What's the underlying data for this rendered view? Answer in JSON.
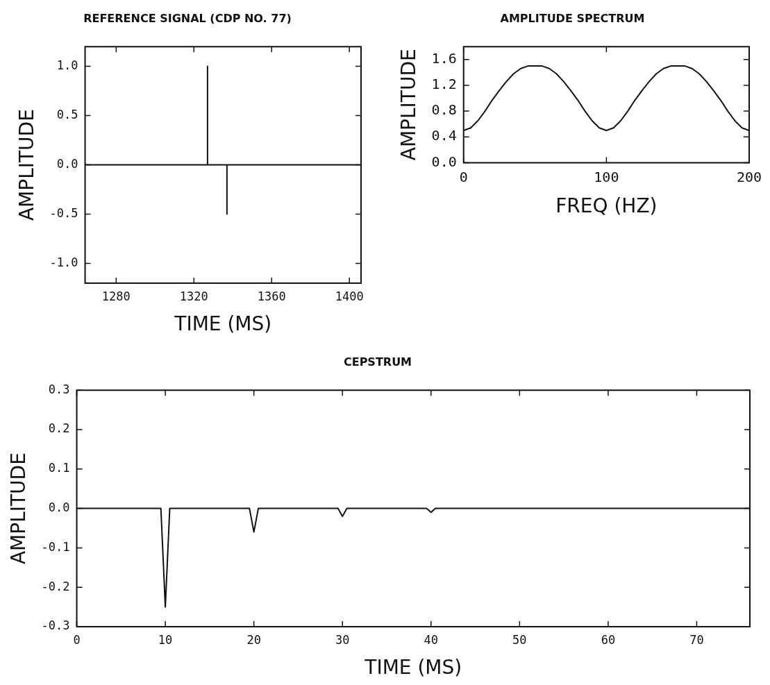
{
  "chart_data": [
    {
      "type": "line",
      "title": "REFERENCE SIGNAL (CDP NO. 77)",
      "xlabel": "TIME (MS)",
      "ylabel": "AMPLITUDE",
      "color": "#111111",
      "marker": "none",
      "x": [
        1264,
        1327,
        1327,
        1327,
        1337,
        1337,
        1337,
        1406
      ],
      "values": [
        0,
        0,
        1.0,
        0,
        0,
        -0.5,
        0,
        0
      ],
      "xlim": [
        1264,
        1406
      ],
      "xticks": [
        1280,
        1320,
        1360,
        1400
      ],
      "ylim": [
        -1.2,
        1.2
      ],
      "yticks": [
        {
          "value": -1,
          "label": "-1.0"
        },
        {
          "value": -0.5,
          "label": "-0.5"
        },
        {
          "value": 0,
          "label": "0.0"
        },
        {
          "value": 0.5,
          "label": "0.5"
        },
        {
          "value": 1,
          "label": "1.0"
        }
      ]
    },
    {
      "type": "line",
      "title": "AMPLITUDE SPECTRUM",
      "xlabel": "FREQ (HZ)",
      "ylabel": "AMPLITUDE",
      "color": "#111111",
      "marker": "none",
      "x": [
        0,
        5,
        10,
        15,
        20,
        25,
        30,
        35,
        40,
        45,
        50,
        55,
        60,
        65,
        70,
        75,
        80,
        85,
        90,
        95,
        100,
        105,
        110,
        115,
        120,
        125,
        130,
        135,
        140,
        145,
        150,
        155,
        160,
        165,
        170,
        175,
        180,
        185,
        190,
        195,
        200
      ],
      "values": [
        0.5,
        0.54,
        0.65,
        0.8,
        0.97,
        1.12,
        1.26,
        1.38,
        1.46,
        1.5,
        1.5,
        1.5,
        1.46,
        1.38,
        1.26,
        1.12,
        0.97,
        0.8,
        0.65,
        0.54,
        0.5,
        0.54,
        0.65,
        0.8,
        0.97,
        1.12,
        1.26,
        1.38,
        1.46,
        1.5,
        1.5,
        1.5,
        1.46,
        1.38,
        1.26,
        1.12,
        0.97,
        0.8,
        0.65,
        0.54,
        0.5
      ],
      "xlim": [
        0,
        200
      ],
      "xticks": [
        0,
        100,
        200
      ],
      "ylim": [
        0,
        1.8
      ],
      "yticks": [
        {
          "value": 0,
          "label": "0.0"
        },
        {
          "value": 0.4,
          "label": "0.4"
        },
        {
          "value": 0.8,
          "label": "0.8"
        },
        {
          "value": 1.2,
          "label": "1.2"
        },
        {
          "value": 1.6,
          "label": "1.6"
        }
      ]
    },
    {
      "type": "line",
      "title": "CEPSTRUM",
      "xlabel": "TIME (MS)",
      "ylabel": "AMPLITUDE",
      "color": "#111111",
      "marker": "none",
      "x": [
        0,
        9.5,
        10,
        10.5,
        19.5,
        20,
        20.5,
        29.5,
        30,
        30.5,
        39.5,
        40,
        40.5,
        76
      ],
      "values": [
        0,
        0,
        -0.25,
        0,
        0,
        -0.06,
        0,
        0,
        -0.02,
        0,
        0,
        -0.01,
        0,
        0
      ],
      "xlim": [
        0,
        76
      ],
      "xticks": [
        0,
        10,
        20,
        30,
        40,
        50,
        60,
        70
      ],
      "ylim": [
        -0.3,
        0.3
      ],
      "yticks": [
        {
          "value": -0.3,
          "label": "-0.3"
        },
        {
          "value": -0.2,
          "label": "-0.2"
        },
        {
          "value": -0.1,
          "label": "-0.1"
        },
        {
          "value": 0,
          "label": "0.0"
        },
        {
          "value": 0.1,
          "label": "0.1"
        },
        {
          "value": 0.2,
          "label": "0.2"
        },
        {
          "value": 0.3,
          "label": "0.3"
        }
      ]
    }
  ]
}
